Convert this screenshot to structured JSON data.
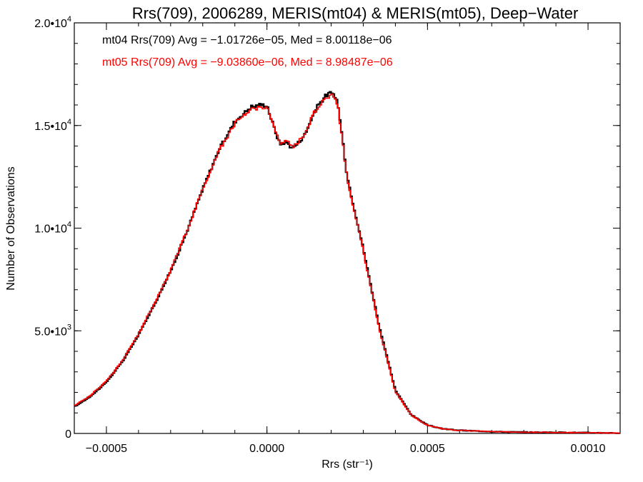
{
  "chart_data": {
    "type": "line",
    "drawstyle": "steps",
    "title": "Rrs(709), 2006289, MERIS(mt04) & MERIS(mt05), Deep−Water",
    "xlabel": "Rrs (str⁻¹)",
    "ylabel": "Number of Observations",
    "xlim": [
      -0.0006,
      0.0011
    ],
    "ylim": [
      0,
      20000
    ],
    "x_ticks": [
      {
        "value": -0.0005,
        "label": "−0.0005"
      },
      {
        "value": 0.0,
        "label": "0.0000"
      },
      {
        "value": 0.0005,
        "label": "0.0005"
      },
      {
        "value": 0.001,
        "label": "0.0010"
      }
    ],
    "y_ticks": [
      {
        "value": 0,
        "mantissa": "0",
        "exp": ""
      },
      {
        "value": 5000,
        "mantissa": "5.0•10",
        "exp": "3"
      },
      {
        "value": 10000,
        "mantissa": "1.0•10",
        "exp": "4"
      },
      {
        "value": 15000,
        "mantissa": "1.5•10",
        "exp": "4"
      },
      {
        "value": 20000,
        "mantissa": "2.0•10",
        "exp": "4"
      }
    ],
    "grid": false,
    "series": [
      {
        "name": "mt04",
        "color": "#000000",
        "annotation": "mt04 Rrs(709) Avg = −1.01726e−05, Med = 8.00118e−06",
        "x": [
          -0.0006,
          -0.00055,
          -0.0005,
          -0.00045,
          -0.0004,
          -0.00035,
          -0.0003,
          -0.00025,
          -0.0002,
          -0.00015,
          -0.0001,
          -5e-05,
          -2e-05,
          0.0,
          2e-05,
          4e-05,
          6e-05,
          8e-05,
          0.0001,
          0.00012,
          0.00014,
          0.00016,
          0.00018,
          0.0002,
          0.00022,
          0.00025,
          0.0003,
          0.00035,
          0.0004,
          0.00045,
          0.0005,
          0.00055,
          0.0006,
          0.0007,
          0.0008,
          0.0009,
          0.001,
          0.0011
        ],
        "y": [
          1300,
          1800,
          2500,
          3500,
          4800,
          6300,
          7900,
          9800,
          11900,
          13800,
          15200,
          15900,
          16000,
          16000,
          15000,
          14100,
          14200,
          13900,
          14200,
          14600,
          15400,
          16000,
          16400,
          16600,
          16200,
          12500,
          9000,
          5200,
          2100,
          900,
          400,
          220,
          150,
          90,
          60,
          50,
          35,
          20
        ]
      },
      {
        "name": "mt05",
        "color": "#ff0000",
        "annotation": "mt05 Rrs(709) Avg = −9.03860e−06, Med = 8.98487e−06",
        "x": [
          -0.0006,
          -0.00055,
          -0.0005,
          -0.00045,
          -0.0004,
          -0.00035,
          -0.0003,
          -0.00025,
          -0.0002,
          -0.00015,
          -0.0001,
          -5e-05,
          -2e-05,
          0.0,
          2e-05,
          4e-05,
          6e-05,
          8e-05,
          0.0001,
          0.00012,
          0.00014,
          0.00016,
          0.00018,
          0.0002,
          0.00022,
          0.00025,
          0.0003,
          0.00035,
          0.0004,
          0.00045,
          0.0005,
          0.00055,
          0.0006,
          0.0007,
          0.0008,
          0.0009,
          0.001,
          0.0011
        ],
        "y": [
          1350,
          1850,
          2550,
          3550,
          4850,
          6350,
          7950,
          9850,
          11900,
          13750,
          15100,
          15800,
          15900,
          15900,
          15000,
          14150,
          14250,
          13950,
          14250,
          14650,
          15400,
          15950,
          16300,
          16500,
          16100,
          12400,
          8900,
          5100,
          2050,
          880,
          390,
          215,
          145,
          88,
          58,
          48,
          33,
          18
        ]
      }
    ]
  }
}
